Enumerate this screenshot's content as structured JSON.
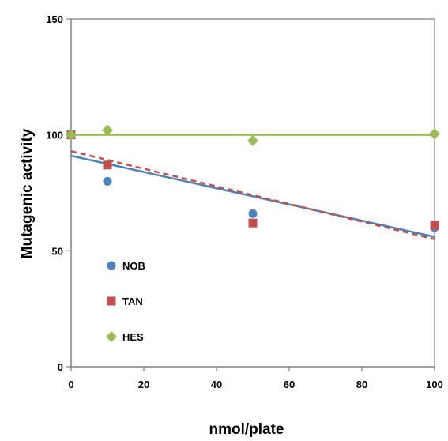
{
  "chart_data": {
    "type": "scatter",
    "xlabel": "nmol/plate",
    "ylabel": "Mutagenic activity",
    "xlim": [
      0,
      100
    ],
    "ylim": [
      0,
      150
    ],
    "xticks": [
      0,
      20,
      40,
      60,
      80,
      100
    ],
    "yticks": [
      0,
      50,
      100,
      150
    ],
    "grid": "horizontal at 100 and 150",
    "legend_position": "lower-left inside plot",
    "series": [
      {
        "name": "NOB",
        "marker": "circle",
        "color": "#4f81bd",
        "x": [
          0,
          10,
          50,
          100
        ],
        "y": [
          100,
          80,
          66,
          60
        ],
        "trendline": {
          "style": "solid",
          "y_start": 91,
          "y_end": 56
        }
      },
      {
        "name": "TAN",
        "marker": "square",
        "color": "#c0504d",
        "x": [
          0,
          10,
          50,
          100
        ],
        "y": [
          100,
          87,
          62,
          61
        ],
        "trendline": {
          "style": "dashed",
          "y_start": 93,
          "y_end": 55
        }
      },
      {
        "name": "HES",
        "marker": "diamond",
        "color": "#9bbb59",
        "x": [
          0,
          10,
          50,
          100
        ],
        "y": [
          100,
          102,
          97.5,
          100.5
        ],
        "trendline": {
          "style": "solid",
          "y_start": 100,
          "y_end": 100
        }
      }
    ]
  }
}
